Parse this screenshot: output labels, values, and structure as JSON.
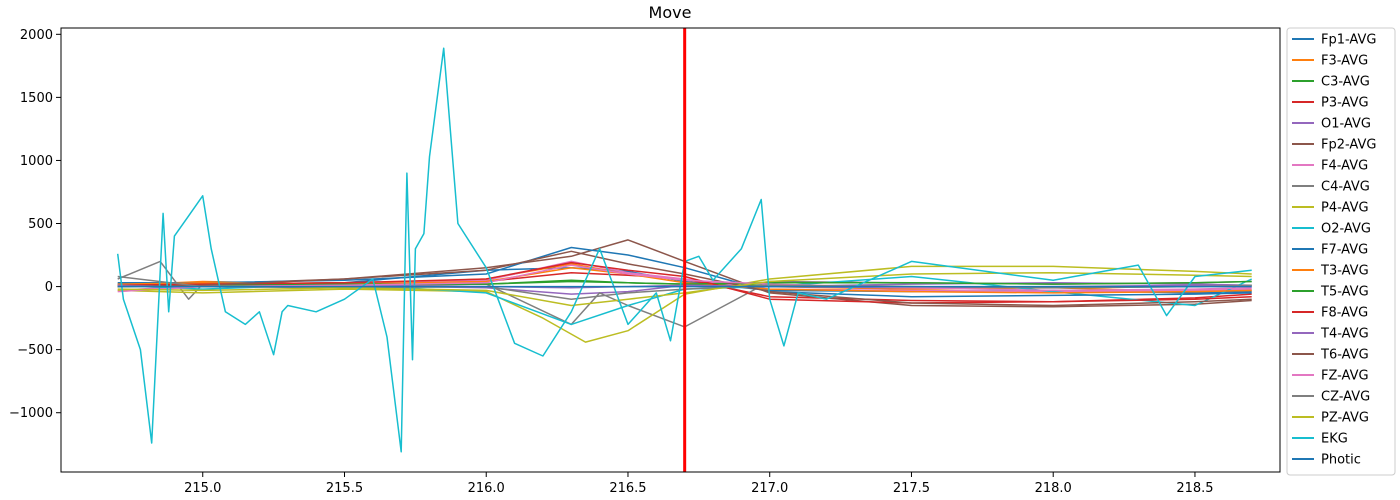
{
  "chart_data": {
    "type": "line",
    "title": "Move",
    "xlabel": "",
    "ylabel": "",
    "xlim": [
      214.5,
      218.8
    ],
    "ylim": [
      -1470,
      2050
    ],
    "x_ticks": [
      215.0,
      215.5,
      216.0,
      216.5,
      217.0,
      217.5,
      218.0,
      218.5
    ],
    "x_tick_labels": [
      "215.0",
      "215.5",
      "216.0",
      "216.5",
      "217.0",
      "217.5",
      "218.0",
      "218.5"
    ],
    "y_ticks": [
      -1000,
      -500,
      0,
      500,
      1000,
      1500,
      2000
    ],
    "y_tick_labels": [
      "−1000",
      "−500",
      "0",
      "500",
      "1000",
      "1500",
      "2000"
    ],
    "grid": false,
    "legend_position": "outside-right",
    "marker": {
      "x": 216.7,
      "color": "#ff0000"
    },
    "series": [
      {
        "name": "Fp1-AVG",
        "color": "#1f77b4",
        "x": [
          214.7,
          215.0,
          215.5,
          216.0,
          216.3,
          216.5,
          216.7,
          217.0,
          217.5,
          218.0,
          218.5,
          218.7
        ],
        "y": [
          20,
          15,
          30,
          130,
          150,
          120,
          40,
          -30,
          -40,
          -30,
          -50,
          -40
        ]
      },
      {
        "name": "F3-AVG",
        "color": "#ff7f0e",
        "x": [
          214.7,
          215.0,
          215.5,
          216.0,
          216.3,
          216.5,
          216.7,
          217.0,
          217.5,
          218.0,
          218.5,
          218.7
        ],
        "y": [
          10,
          40,
          20,
          60,
          180,
          100,
          50,
          0,
          -20,
          -10,
          -40,
          -30
        ]
      },
      {
        "name": "C3-AVG",
        "color": "#2ca02c",
        "x": [
          214.7,
          215.0,
          215.5,
          216.0,
          216.3,
          216.5,
          216.7,
          217.0,
          217.5,
          218.0,
          218.5,
          218.7
        ],
        "y": [
          5,
          10,
          10,
          20,
          40,
          30,
          20,
          10,
          0,
          -10,
          0,
          10
        ]
      },
      {
        "name": "P3-AVG",
        "color": "#d62728",
        "x": [
          214.7,
          215.0,
          215.5,
          216.0,
          216.3,
          216.5,
          216.7,
          217.0,
          217.5,
          218.0,
          218.5,
          218.7
        ],
        "y": [
          0,
          20,
          30,
          40,
          110,
          90,
          60,
          -80,
          -110,
          -120,
          -90,
          -60
        ]
      },
      {
        "name": "O1-AVG",
        "color": "#9467bd",
        "x": [
          214.7,
          215.0,
          215.5,
          216.0,
          216.3,
          216.5,
          216.7,
          217.0,
          217.5,
          218.0,
          218.5,
          218.7
        ],
        "y": [
          10,
          0,
          10,
          -10,
          -60,
          -40,
          10,
          0,
          20,
          30,
          20,
          10
        ]
      },
      {
        "name": "Fp2-AVG",
        "color": "#8c564b",
        "x": [
          214.7,
          215.0,
          215.5,
          216.0,
          216.3,
          216.5,
          216.7,
          217.0,
          217.5,
          218.0,
          218.5,
          218.7
        ],
        "y": [
          0,
          20,
          60,
          150,
          240,
          370,
          200,
          -50,
          -150,
          -160,
          -140,
          -110
        ]
      },
      {
        "name": "F4-AVG",
        "color": "#e377c2",
        "x": [
          214.7,
          215.0,
          215.5,
          216.0,
          216.3,
          216.5,
          216.7,
          217.0,
          217.5,
          218.0,
          218.5,
          218.7
        ],
        "y": [
          -30,
          10,
          20,
          50,
          200,
          110,
          60,
          -20,
          -30,
          -40,
          -30,
          -20
        ]
      },
      {
        "name": "C4-AVG",
        "color": "#7f7f7f",
        "x": [
          214.7,
          214.85,
          214.95,
          215.0,
          215.5,
          216.0,
          216.3,
          216.4,
          216.5,
          216.7,
          217.0,
          217.5,
          218.0,
          218.5,
          218.7
        ],
        "y": [
          60,
          200,
          -100,
          20,
          10,
          20,
          -300,
          -50,
          -150,
          -320,
          40,
          30,
          20,
          30,
          40
        ]
      },
      {
        "name": "P4-AVG",
        "color": "#bcbd22",
        "x": [
          214.7,
          215.0,
          215.5,
          216.0,
          216.2,
          216.35,
          216.5,
          216.7,
          217.0,
          217.5,
          218.0,
          218.5,
          218.7
        ],
        "y": [
          -30,
          -50,
          -20,
          -40,
          -250,
          -440,
          -350,
          -60,
          60,
          160,
          160,
          120,
          100
        ]
      },
      {
        "name": "O2-AVG",
        "color": "#17becf",
        "x": [
          214.7,
          215.0,
          215.5,
          216.0,
          216.3,
          216.5,
          216.7,
          217.0,
          217.5,
          218.0,
          218.5,
          218.7
        ],
        "y": [
          10,
          -20,
          20,
          -50,
          -300,
          -150,
          -20,
          0,
          80,
          -40,
          -150,
          60
        ]
      },
      {
        "name": "F7-AVG",
        "color": "#1f77b4",
        "x": [
          214.7,
          215.0,
          215.5,
          216.0,
          216.3,
          216.5,
          216.7,
          217.0,
          217.5,
          218.0,
          218.5,
          218.7
        ],
        "y": [
          30,
          30,
          50,
          100,
          310,
          250,
          150,
          -40,
          -80,
          -70,
          -60,
          -50
        ]
      },
      {
        "name": "T3-AVG",
        "color": "#ff7f0e",
        "x": [
          214.7,
          215.0,
          215.5,
          216.0,
          216.3,
          216.5,
          216.7,
          217.0,
          217.5,
          218.0,
          218.5,
          218.7
        ],
        "y": [
          20,
          30,
          20,
          40,
          150,
          100,
          30,
          -20,
          -40,
          -50,
          -40,
          -30
        ]
      },
      {
        "name": "T5-AVG",
        "color": "#2ca02c",
        "x": [
          214.7,
          215.0,
          215.5,
          216.0,
          216.3,
          216.5,
          216.7,
          217.0,
          217.5,
          218.0,
          218.5,
          218.7
        ],
        "y": [
          0,
          10,
          20,
          20,
          50,
          30,
          20,
          30,
          30,
          20,
          30,
          40
        ]
      },
      {
        "name": "F8-AVG",
        "color": "#d62728",
        "x": [
          214.7,
          215.0,
          215.5,
          216.0,
          216.3,
          216.5,
          216.7,
          217.0,
          217.5,
          218.0,
          218.5,
          218.7
        ],
        "y": [
          10,
          20,
          30,
          60,
          190,
          130,
          80,
          -100,
          -130,
          -120,
          -100,
          -80
        ]
      },
      {
        "name": "T4-AVG",
        "color": "#9467bd",
        "x": [
          214.7,
          215.0,
          215.5,
          216.0,
          216.3,
          216.5,
          216.7,
          217.0,
          217.5,
          218.0,
          218.5,
          218.7
        ],
        "y": [
          10,
          0,
          10,
          0,
          -10,
          0,
          10,
          0,
          -10,
          0,
          10,
          0
        ]
      },
      {
        "name": "T6-AVG",
        "color": "#8c564b",
        "x": [
          214.7,
          215.0,
          215.5,
          216.0,
          216.3,
          216.5,
          216.7,
          217.0,
          217.5,
          218.0,
          218.5,
          218.7
        ],
        "y": [
          0,
          10,
          60,
          130,
          280,
          180,
          100,
          -40,
          -130,
          -150,
          -120,
          -100
        ]
      },
      {
        "name": "FZ-AVG",
        "color": "#e377c2",
        "x": [
          214.7,
          215.0,
          215.5,
          216.0,
          216.3,
          216.5,
          216.7,
          217.0,
          217.5,
          218.0,
          218.5,
          218.7
        ],
        "y": [
          -40,
          0,
          10,
          30,
          170,
          100,
          50,
          20,
          -10,
          -30,
          -20,
          -10
        ]
      },
      {
        "name": "CZ-AVG",
        "color": "#7f7f7f",
        "x": [
          214.7,
          215.0,
          215.5,
          216.0,
          216.3,
          216.5,
          216.7,
          217.0,
          217.5,
          218.0,
          218.5,
          218.7
        ],
        "y": [
          80,
          0,
          -10,
          0,
          -100,
          -50,
          -20,
          10,
          0,
          -10,
          0,
          10
        ]
      },
      {
        "name": "PZ-AVG",
        "color": "#bcbd22",
        "x": [
          214.7,
          215.0,
          215.5,
          216.0,
          216.3,
          216.5,
          216.7,
          217.0,
          217.5,
          218.0,
          218.5,
          218.7
        ],
        "y": [
          -20,
          -30,
          -10,
          -30,
          -150,
          -100,
          -50,
          40,
          100,
          110,
          90,
          80
        ]
      },
      {
        "name": "EKG",
        "color": "#17becf",
        "x": [
          214.7,
          214.72,
          214.78,
          214.82,
          214.86,
          214.88,
          214.9,
          214.95,
          215.0,
          215.03,
          215.08,
          215.15,
          215.2,
          215.25,
          215.28,
          215.3,
          215.4,
          215.5,
          215.6,
          215.65,
          215.7,
          215.72,
          215.74,
          215.75,
          215.78,
          215.8,
          215.85,
          215.9,
          216.0,
          216.1,
          216.2,
          216.3,
          216.4,
          216.5,
          216.6,
          216.65,
          216.7,
          216.75,
          216.8,
          216.9,
          216.97,
          217.0,
          217.05,
          217.1,
          217.2,
          217.5,
          218.0,
          218.3,
          218.4,
          218.5,
          218.7
        ],
        "y": [
          260,
          -100,
          -500,
          -1240,
          580,
          -200,
          400,
          560,
          720,
          300,
          -200,
          -300,
          -200,
          -540,
          -200,
          -150,
          -200,
          -100,
          60,
          -400,
          -1310,
          900,
          -580,
          300,
          420,
          1030,
          1890,
          500,
          150,
          -450,
          -550,
          -200,
          300,
          -300,
          -50,
          -430,
          200,
          240,
          50,
          300,
          690,
          -100,
          -470,
          -50,
          -100,
          200,
          50,
          170,
          -230,
          80,
          130
        ]
      },
      {
        "name": "Photic",
        "color": "#1f77b4",
        "x": [
          214.7,
          215.0,
          215.5,
          216.0,
          216.5,
          216.7,
          217.0,
          217.5,
          218.0,
          218.5,
          218.7
        ],
        "y": [
          0,
          0,
          0,
          0,
          0,
          0,
          0,
          0,
          0,
          0,
          0
        ]
      }
    ]
  }
}
